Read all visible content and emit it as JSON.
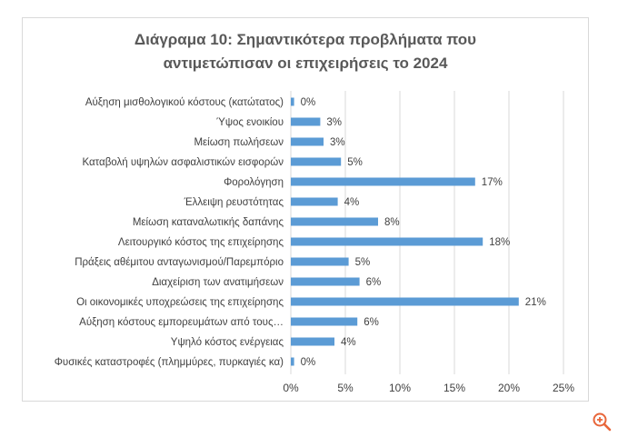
{
  "chart_data": {
    "type": "bar",
    "orientation": "horizontal",
    "title_lines": [
      "Διάγραμα 10: Σημαντικότερα προβλήματα που",
      "αντιμετώπισαν οι επιχειρήσεις το 2024"
    ],
    "categories": [
      "Αύξηση μισθολογικού κόστους (κατώτατος)",
      "Ύψος ενοικίου",
      "Μείωση πωλήσεων",
      "Καταβολή υψηλών ασφαλιστικών εισφορών",
      "Φορολόγηση",
      "Έλλειψη ρευστότητας",
      "Μείωση καταναλωτικής δαπάνης",
      "Λειτουργικό κόστος της επιχείρησης",
      "Πράξεις αθέμιτου ανταγωνισμού/Παρεμπόριο",
      "Διαχείριση των ανατιμήσεων",
      "Οι οικονομικές υποχρεώσεις της επιχείρησης",
      "Αύξηση κόστους εμπορευμάτων από τους…",
      "Υψηλό κόστος ενέργειας",
      "Φυσικές καταστροφές (πλημμύρες, πυρκαγιές κα)"
    ],
    "values": [
      0.3,
      2.7,
      3.0,
      4.6,
      16.9,
      4.3,
      8.0,
      17.6,
      5.3,
      6.3,
      20.9,
      6.1,
      4.0,
      0.3
    ],
    "data_labels": [
      "0%",
      "3%",
      "3%",
      "5%",
      "17%",
      "4%",
      "8%",
      "18%",
      "5%",
      "6%",
      "21%",
      "6%",
      "4%",
      "0%"
    ],
    "xlim": [
      0,
      25
    ],
    "xticks": [
      0,
      5,
      10,
      15,
      20,
      25
    ],
    "xtick_labels": [
      "0%",
      "5%",
      "10%",
      "15%",
      "20%",
      "25%"
    ],
    "grid": true,
    "colors": {
      "bar": "#5b9bd5",
      "grid": "#d9d9d9",
      "text": "#404040",
      "title": "#595959",
      "zoom": "#e8663a"
    }
  },
  "ui": {
    "zoom_icon": "zoom-in-icon"
  }
}
